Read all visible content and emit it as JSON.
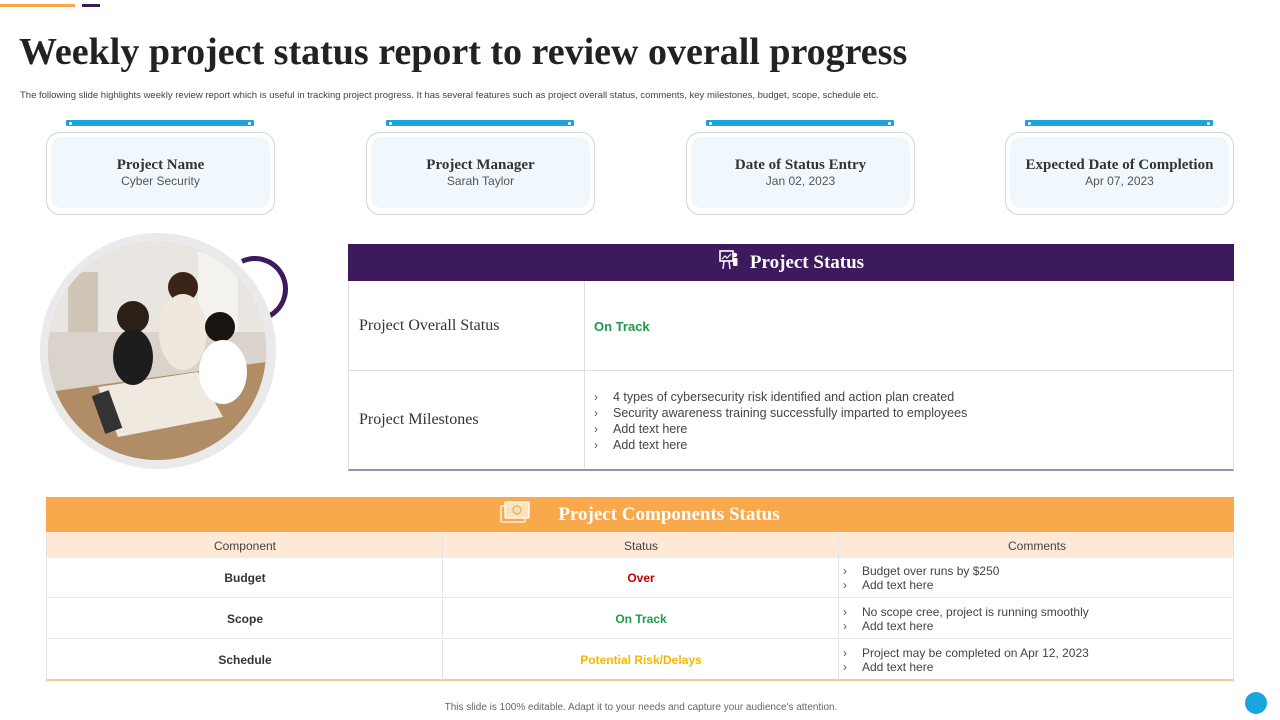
{
  "title": "Weekly project status report to review overall progress",
  "subtitle": "The following slide highlights weekly review report which is useful in tracking project progress. It has several features such as project overall status, comments, key milestones, budget, scope, schedule etc.",
  "colors": {
    "purple": "#3d1a5c",
    "orange": "#f9a94b",
    "blue": "#1ba3db",
    "green": "#1a9b4b",
    "red": "#c00000",
    "amber": "#f5b800"
  },
  "cards": [
    {
      "label": "Project Name",
      "value": "Cyber Security"
    },
    {
      "label": "Project Manager",
      "value": "Sarah Taylor"
    },
    {
      "label": "Date of Status Entry",
      "value": "Jan 02, 2023"
    },
    {
      "label": "Expected Date of Completion",
      "value": "Apr 07, 2023"
    }
  ],
  "project_status": {
    "header": "Project Status",
    "header_icon": "presentation-icon",
    "overall_label": "Project Overall Status",
    "overall_value": "On Track",
    "milestones_label": "Project Milestones",
    "milestones": [
      "4 types of cybersecurity risk identified and action plan created",
      "Security awareness training successfully imparted to employees",
      "Add text here",
      "Add text here"
    ]
  },
  "components": {
    "header": "Project Components Status",
    "header_icon": "money-icon",
    "columns": [
      "Component",
      "Status",
      "Comments"
    ],
    "rows": [
      {
        "component": "Budget",
        "status": "Over",
        "comments": [
          "Budget over runs by $250",
          "Add text here"
        ]
      },
      {
        "component": "Scope",
        "status": "On Track",
        "comments": [
          "No scope cree, project is running smoothly",
          "Add text here"
        ]
      },
      {
        "component": "Schedule",
        "status": "Potential Risk/Delays",
        "comments": [
          "Project may be completed on Apr 12, 2023",
          "Add text here"
        ]
      }
    ]
  },
  "footer": "This slide is 100% editable. Adapt it to your needs and capture your audience's attention."
}
